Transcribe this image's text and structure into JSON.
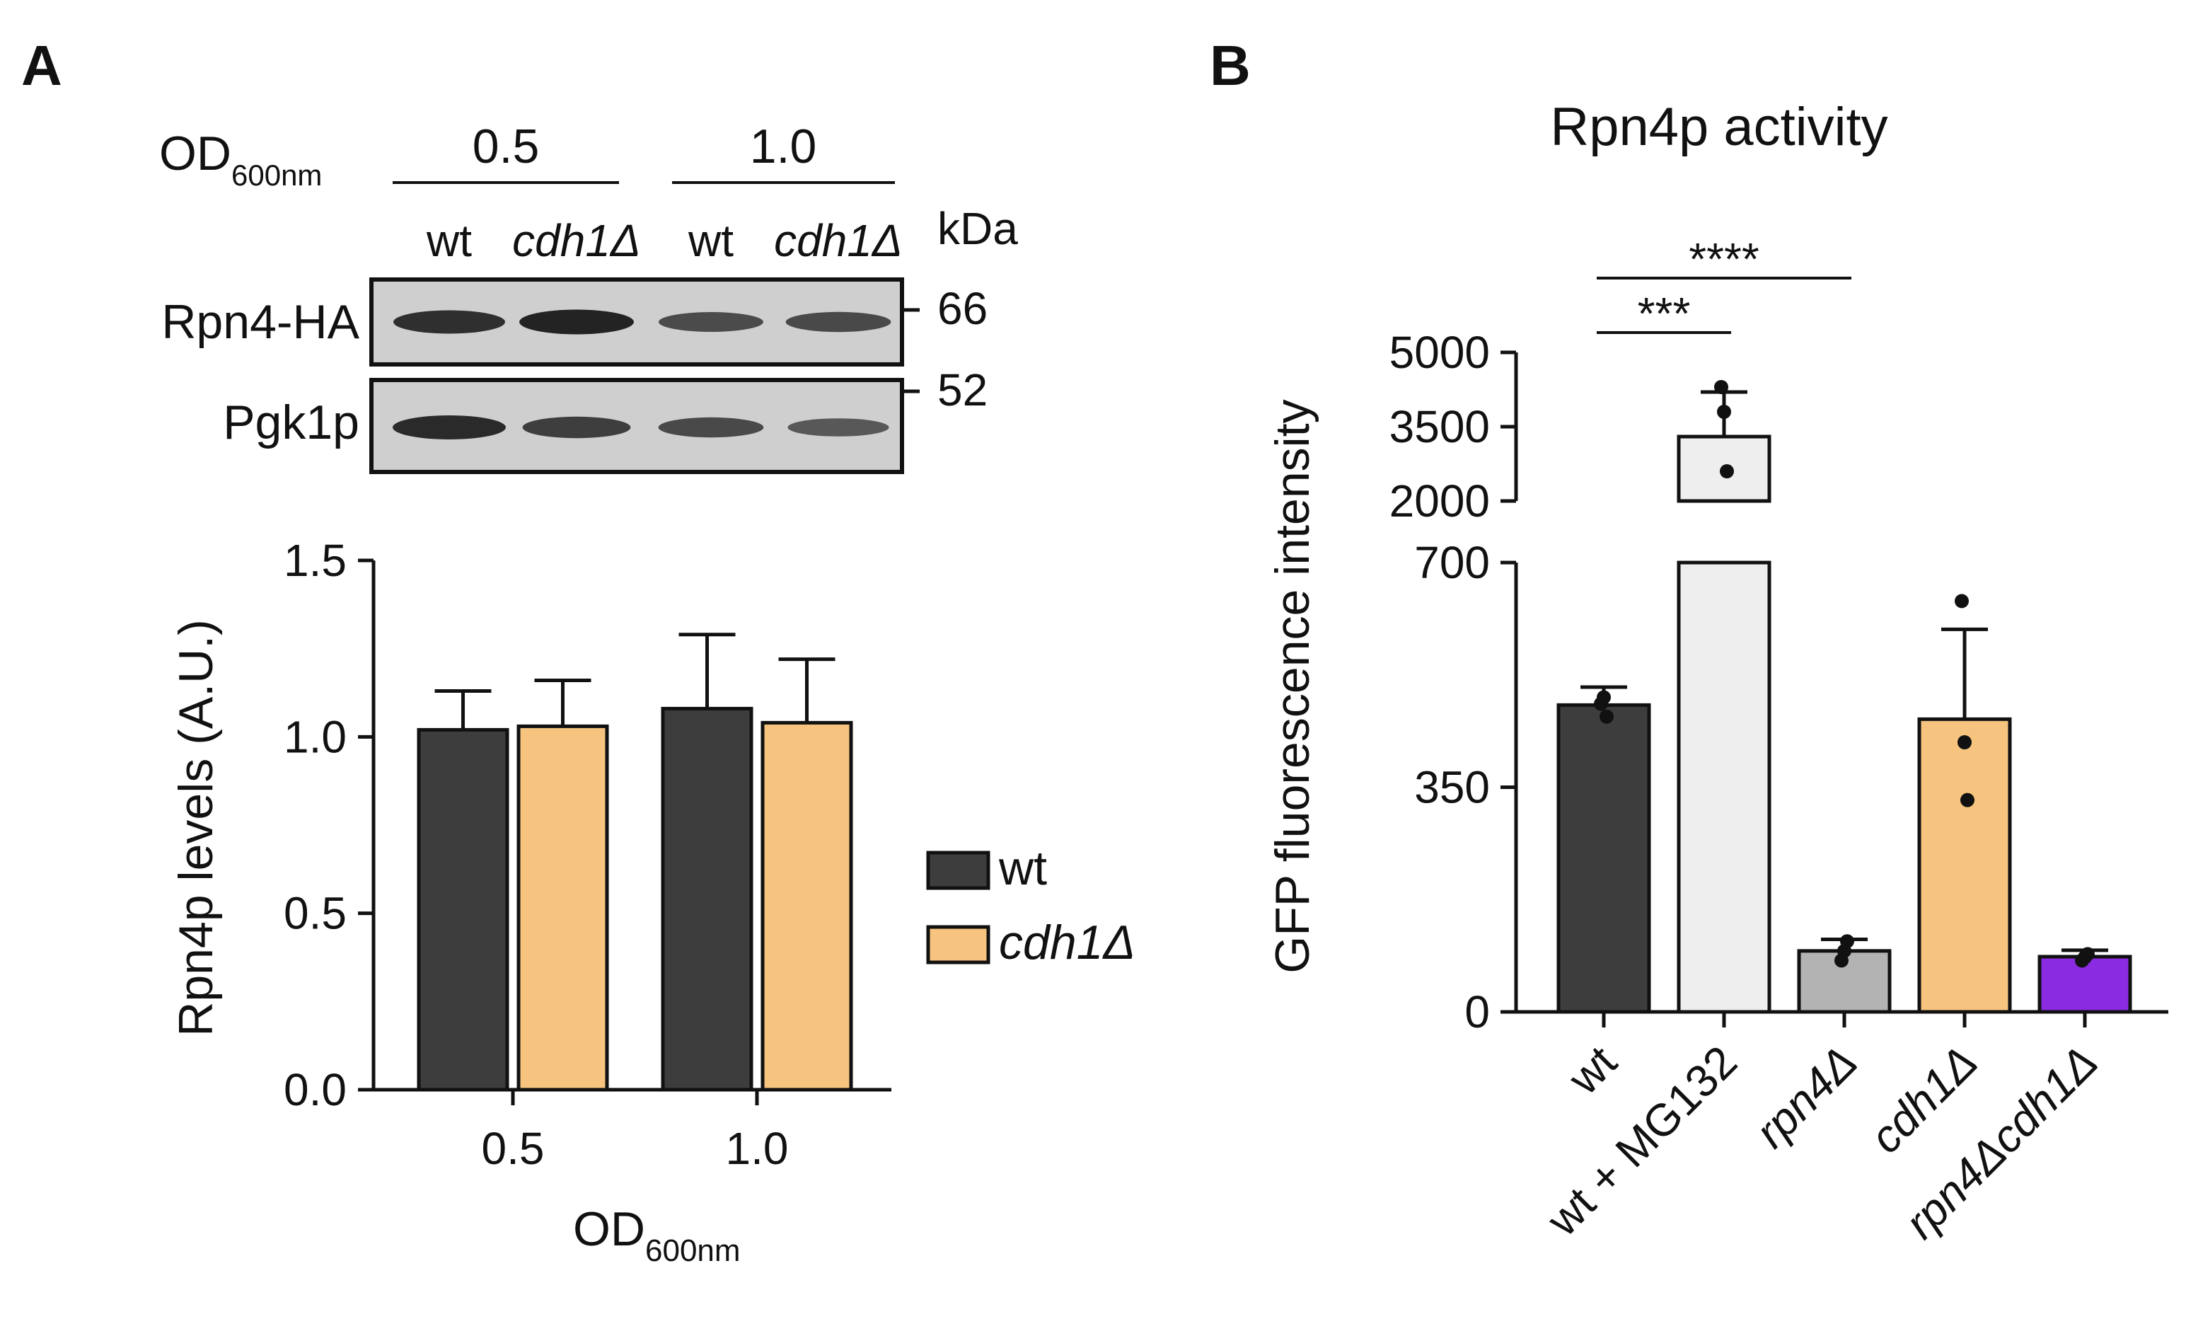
{
  "panels": {
    "a_label": "A",
    "b_label": "B"
  },
  "blot": {
    "od_label": "OD",
    "od_sub": "600nm",
    "groups": [
      "0.5",
      "1.0"
    ],
    "lanes": [
      "wt",
      "cdh1Δ",
      "wt",
      "cdh1Δ"
    ],
    "kda_label": "kDa",
    "rows": [
      {
        "label": "Rpn4-HA",
        "intensity": [
          0.85,
          0.95,
          0.6,
          0.62
        ],
        "band_color": "#151515"
      },
      {
        "label": "Pgk1p",
        "intensity": [
          0.9,
          0.72,
          0.62,
          0.48
        ],
        "band_color": "#151515"
      }
    ],
    "markers": [
      "66",
      "52"
    ]
  },
  "chart_data": [
    {
      "type": "bar",
      "categories": [
        "0.5",
        "1.0"
      ],
      "series": [
        {
          "name": "wt",
          "values": [
            1.02,
            1.08
          ],
          "errors": [
            0.11,
            0.21
          ],
          "color": "#3d3d3d"
        },
        {
          "name": "cdh1Δ",
          "values": [
            1.03,
            1.04
          ],
          "errors": [
            0.13,
            0.18
          ],
          "color": "#f6c47e"
        }
      ],
      "title": "",
      "xlabel": "OD",
      "xlabel_sub": "600nm",
      "ylabel": "Rpn4p levels (A.U.)",
      "ylim": [
        0,
        1.5
      ],
      "yticks": [
        "0.0",
        "0.5",
        "1.0",
        "1.5"
      ],
      "legend": "right"
    },
    {
      "type": "bar",
      "title": "Rpn4p activity",
      "ylabel": "GFP fluorescence intensity",
      "categories": [
        "wt",
        "wt + MG132",
        "rpn4Δ",
        "cdh1Δ",
        "rpn4Δcdh1Δ"
      ],
      "category_italic": [
        false,
        false,
        true,
        true,
        true
      ],
      "values": [
        478,
        3300,
        95,
        456,
        86
      ],
      "errors": [
        28,
        900,
        18,
        140,
        10
      ],
      "points": [
        [
          480,
          490,
          460
        ],
        [
          4300,
          3800,
          2600
        ],
        [
          80,
          95,
          110
        ],
        [
          640,
          420,
          330
        ],
        [
          80,
          85,
          90
        ]
      ],
      "colors": [
        "#3d3d3d",
        "#eeeeee",
        "#b3b3b3",
        "#f6c47e",
        "#8a2be2"
      ],
      "y_axis_broken": true,
      "lower_range": [
        0,
        700
      ],
      "upper_range": [
        2000,
        5000
      ],
      "yticks_lower": [
        "0",
        "350",
        "700"
      ],
      "yticks_upper": [
        "2000",
        "3500",
        "5000"
      ],
      "significance": [
        {
          "from": "wt",
          "to": "wt + MG132",
          "label": "***"
        },
        {
          "from": "wt",
          "to": "rpn4Δ",
          "label": "****"
        }
      ]
    }
  ]
}
